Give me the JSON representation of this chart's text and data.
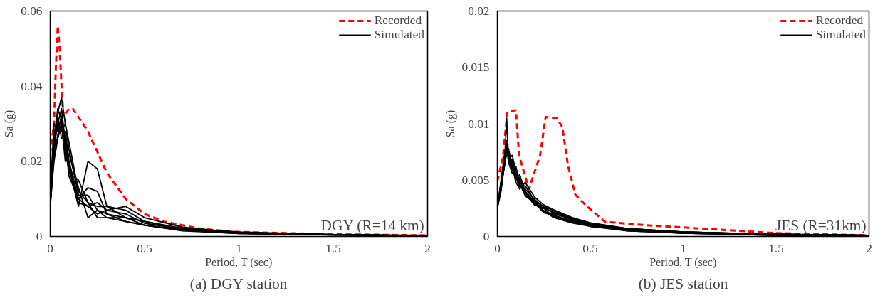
{
  "chart_data": [
    {
      "type": "line",
      "title": "(a) DGY station",
      "xlabel": "Period, T (sec)",
      "ylabel": "Sa (g)",
      "xlim": [
        0,
        2
      ],
      "ylim": [
        0,
        0.06
      ],
      "xticks": [
        0,
        0.5,
        1,
        1.5,
        2
      ],
      "yticks": [
        0,
        0.02,
        0.04,
        0.06
      ],
      "grid": false,
      "legend": "top right",
      "annotations": [
        "DGY (R=14 km)"
      ],
      "x": [
        0,
        0.02,
        0.04,
        0.06,
        0.08,
        0.1,
        0.15,
        0.2,
        0.25,
        0.3,
        0.4,
        0.5,
        0.7,
        1.0,
        1.5,
        2.0
      ],
      "series": [
        {
          "name": "Recorded",
          "color": "#ff0000",
          "line_style": "dashed",
          "x": [
            0,
            0.02,
            0.03,
            0.04,
            0.05,
            0.06,
            0.07,
            0.1,
            0.12,
            0.2,
            0.3,
            0.4,
            0.5,
            0.6,
            0.8,
            1.0,
            1.5,
            2.0
          ],
          "values": [
            0.022,
            0.03,
            0.045,
            0.056,
            0.05,
            0.04,
            0.032,
            0.034,
            0.034,
            0.028,
            0.017,
            0.01,
            0.006,
            0.004,
            0.002,
            0.0012,
            0.0006,
            0.0003
          ]
        },
        {
          "name": "Simulated",
          "color": "#000000",
          "line_style": "solid",
          "values": [
            0.008,
            0.025,
            0.033,
            0.037,
            0.03,
            0.025,
            0.012,
            0.009,
            0.008,
            0.008,
            0.007,
            0.004,
            0.002,
            0.001,
            0.0005,
            0.0003
          ]
        },
        {
          "color": "#000000",
          "line_style": "solid",
          "values": [
            0.01,
            0.03,
            0.028,
            0.032,
            0.022,
            0.018,
            0.008,
            0.02,
            0.018,
            0.008,
            0.005,
            0.003,
            0.0018,
            0.0009,
            0.0004,
            0.0002
          ]
        },
        {
          "color": "#000000",
          "line_style": "solid",
          "values": [
            0.009,
            0.022,
            0.032,
            0.026,
            0.028,
            0.02,
            0.01,
            0.013,
            0.012,
            0.006,
            0.005,
            0.004,
            0.002,
            0.001,
            0.0004,
            0.0002
          ]
        },
        {
          "color": "#000000",
          "line_style": "solid",
          "values": [
            0.01,
            0.028,
            0.03,
            0.034,
            0.025,
            0.016,
            0.01,
            0.008,
            0.006,
            0.007,
            0.008,
            0.005,
            0.0025,
            0.001,
            0.0005,
            0.0002
          ]
        },
        {
          "color": "#000000",
          "line_style": "solid",
          "values": [
            0.008,
            0.02,
            0.026,
            0.03,
            0.02,
            0.022,
            0.013,
            0.005,
            0.007,
            0.006,
            0.004,
            0.003,
            0.0015,
            0.0008,
            0.0004,
            0.0002
          ]
        },
        {
          "color": "#000000",
          "line_style": "solid",
          "values": [
            0.009,
            0.024,
            0.03,
            0.028,
            0.03,
            0.023,
            0.011,
            0.011,
            0.007,
            0.005,
            0.004,
            0.003,
            0.0017,
            0.0008,
            0.0004,
            0.0002
          ]
        },
        {
          "color": "#000000",
          "line_style": "solid",
          "values": [
            0.01,
            0.026,
            0.034,
            0.031,
            0.026,
            0.019,
            0.009,
            0.008,
            0.009,
            0.007,
            0.006,
            0.0035,
            0.002,
            0.001,
            0.0005,
            0.0002
          ]
        },
        {
          "color": "#000000",
          "line_style": "solid",
          "values": [
            0.008,
            0.021,
            0.027,
            0.032,
            0.024,
            0.017,
            0.015,
            0.009,
            0.005,
            0.005,
            0.005,
            0.004,
            0.0022,
            0.0012,
            0.0005,
            0.0002
          ]
        }
      ]
    },
    {
      "type": "line",
      "title": "(b) JES station",
      "xlabel": "Period, T (sec)",
      "ylabel": "Sa (g)",
      "xlim": [
        0,
        2
      ],
      "ylim": [
        0,
        0.02
      ],
      "xticks": [
        0,
        0.5,
        1,
        1.5,
        2
      ],
      "yticks": [
        0,
        0.005,
        0.01,
        0.015,
        0.02
      ],
      "grid": false,
      "legend": "top right",
      "annotations": [
        "JES (R=31km)"
      ],
      "x": [
        0,
        0.02,
        0.04,
        0.05,
        0.06,
        0.08,
        0.1,
        0.12,
        0.15,
        0.2,
        0.25,
        0.3,
        0.4,
        0.5,
        0.7,
        1.0,
        1.5,
        2.0
      ],
      "series": [
        {
          "name": "Recorded",
          "color": "#ff0000",
          "line_style": "dashed",
          "x": [
            0,
            0.03,
            0.054,
            0.1,
            0.117,
            0.17,
            0.23,
            0.26,
            0.32,
            0.35,
            0.38,
            0.42,
            0.48,
            0.58,
            0.8,
            1.0,
            1.5,
            2.0
          ],
          "values": [
            0.0049,
            0.007,
            0.0111,
            0.0112,
            0.0072,
            0.0042,
            0.0072,
            0.0106,
            0.0105,
            0.0097,
            0.0063,
            0.0037,
            0.0027,
            0.0013,
            0.001,
            0.0008,
            0.0003,
            0.0001
          ]
        },
        {
          "name": "Simulated",
          "color": "#000000",
          "line_style": "solid",
          "values": [
            0.0025,
            0.004,
            0.007,
            0.0105,
            0.007,
            0.0065,
            0.005,
            0.0055,
            0.004,
            0.003,
            0.0025,
            0.0022,
            0.0015,
            0.001,
            0.0006,
            0.0003,
            0.0001,
            0.0001
          ]
        },
        {
          "color": "#000000",
          "line_style": "solid",
          "values": [
            0.0028,
            0.0045,
            0.0065,
            0.008,
            0.0075,
            0.006,
            0.0055,
            0.0045,
            0.0045,
            0.0032,
            0.0022,
            0.002,
            0.0016,
            0.0011,
            0.0007,
            0.0004,
            0.0002,
            0.0001
          ]
        },
        {
          "color": "#000000",
          "line_style": "solid",
          "values": [
            0.0025,
            0.005,
            0.0075,
            0.0078,
            0.0068,
            0.0072,
            0.0058,
            0.005,
            0.0038,
            0.0028,
            0.0025,
            0.0018,
            0.0013,
            0.0009,
            0.0006,
            0.0003,
            0.0002,
            0.0001
          ]
        },
        {
          "color": "#000000",
          "line_style": "solid",
          "values": [
            0.003,
            0.0042,
            0.0068,
            0.0072,
            0.0078,
            0.0062,
            0.0048,
            0.0042,
            0.0048,
            0.0035,
            0.0028,
            0.0024,
            0.0017,
            0.0012,
            0.0007,
            0.0004,
            0.0002,
            0.0001
          ]
        },
        {
          "color": "#000000",
          "line_style": "solid",
          "values": [
            0.0026,
            0.0048,
            0.007,
            0.0085,
            0.007,
            0.0058,
            0.0062,
            0.0047,
            0.0036,
            0.003,
            0.0021,
            0.0019,
            0.0014,
            0.001,
            0.0005,
            0.0003,
            0.0001,
            0.0001
          ]
        },
        {
          "color": "#000000",
          "line_style": "solid",
          "values": [
            0.0027,
            0.0044,
            0.0066,
            0.0076,
            0.0074,
            0.0065,
            0.0052,
            0.0044,
            0.0042,
            0.0033,
            0.0026,
            0.0021,
            0.0015,
            0.0011,
            0.0006,
            0.0004,
            0.0002,
            0.0001
          ]
        },
        {
          "color": "#000000",
          "line_style": "solid",
          "values": [
            0.0025,
            0.0046,
            0.0072,
            0.0082,
            0.0066,
            0.0056,
            0.0056,
            0.0052,
            0.0039,
            0.0029,
            0.0023,
            0.0017,
            0.0012,
            0.0009,
            0.0005,
            0.0003,
            0.0001,
            0.0001
          ]
        },
        {
          "color": "#000000",
          "line_style": "solid",
          "values": [
            0.0029,
            0.0043,
            0.0064,
            0.0074,
            0.0071,
            0.0068,
            0.0054,
            0.0046,
            0.004,
            0.0031,
            0.0027,
            0.0023,
            0.0016,
            0.0012,
            0.0007,
            0.0004,
            0.0002,
            0.0001
          ]
        }
      ]
    }
  ]
}
